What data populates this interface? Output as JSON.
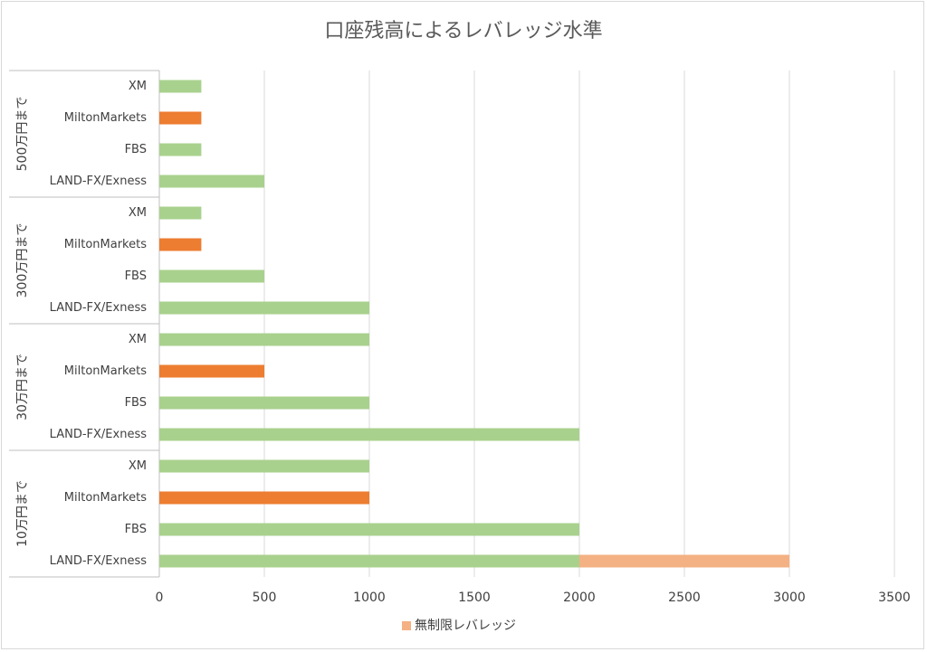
{
  "chart_data": {
    "type": "bar",
    "orientation": "horizontal",
    "title": "口座残高によるレバレッジ水準",
    "xlim": [
      0,
      3500
    ],
    "x_ticks": [
      0,
      500,
      1000,
      1500,
      2000,
      2500,
      3000,
      3500
    ],
    "grid": true,
    "legend_position": "bottom",
    "legend": [
      {
        "name": "無制限レバレッジ",
        "color": "#f4b183"
      }
    ],
    "colors": {
      "green": "#a9d18e",
      "orange": "#ed7d31",
      "peach": "#f4b183"
    },
    "groups": [
      {
        "label": "500万円まで",
        "rows": [
          {
            "category": "XM",
            "value": 200,
            "color": "green"
          },
          {
            "category": "MiltonMarkets",
            "value": 200,
            "color": "orange"
          },
          {
            "category": "FBS",
            "value": 200,
            "color": "green"
          },
          {
            "category": "LAND-FX/Exness",
            "value": 500,
            "color": "green"
          }
        ]
      },
      {
        "label": "300万円まで",
        "rows": [
          {
            "category": "XM",
            "value": 200,
            "color": "green"
          },
          {
            "category": "MiltonMarkets",
            "value": 200,
            "color": "orange"
          },
          {
            "category": "FBS",
            "value": 500,
            "color": "green"
          },
          {
            "category": "LAND-FX/Exness",
            "value": 1000,
            "color": "green"
          }
        ]
      },
      {
        "label": "30万円まで",
        "rows": [
          {
            "category": "XM",
            "value": 1000,
            "color": "green"
          },
          {
            "category": "MiltonMarkets",
            "value": 500,
            "color": "orange"
          },
          {
            "category": "FBS",
            "value": 1000,
            "color": "green"
          },
          {
            "category": "LAND-FX/Exness",
            "value": 2000,
            "color": "green"
          }
        ]
      },
      {
        "label": "10万円まで",
        "rows": [
          {
            "category": "XM",
            "value": 1000,
            "color": "green"
          },
          {
            "category": "MiltonMarkets",
            "value": 1000,
            "color": "orange"
          },
          {
            "category": "FBS",
            "value": 2000,
            "color": "green"
          },
          {
            "category": "LAND-FX/Exness",
            "value": 2000,
            "color": "green",
            "stack_value": 1000,
            "stack_color": "peach"
          }
        ]
      }
    ]
  }
}
